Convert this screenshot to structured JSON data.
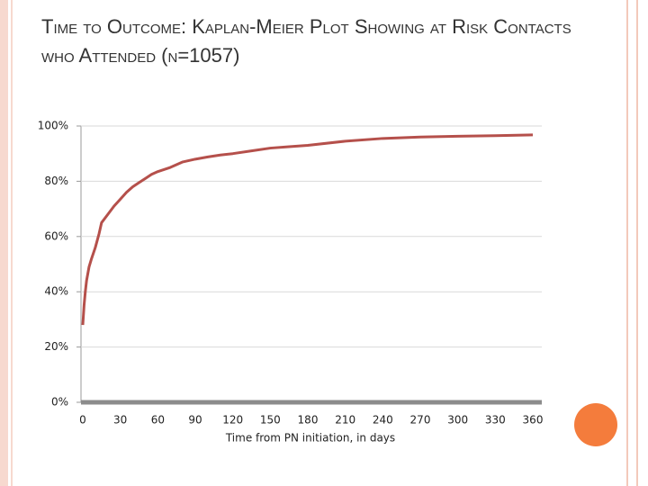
{
  "chart_data": {
    "type": "line",
    "title": "Time to Outcome: Kaplan-Meier Plot Showing at Risk Contacts who Attended (n=1057)",
    "x_label": "Time from PN initiation, in days",
    "x": [
      0,
      1,
      2,
      3,
      5,
      7,
      10,
      13,
      15,
      20,
      25,
      30,
      35,
      40,
      45,
      50,
      55,
      60,
      70,
      80,
      90,
      100,
      110,
      120,
      135,
      150,
      165,
      180,
      210,
      240,
      270,
      300,
      330,
      360
    ],
    "values": [
      28,
      35,
      40,
      44,
      49,
      52,
      56,
      61,
      65,
      68,
      71,
      73.5,
      76,
      78,
      79.5,
      81,
      82.5,
      83.5,
      85,
      87,
      88,
      88.8,
      89.5,
      90,
      91,
      92,
      92.5,
      93,
      94.5,
      95.5,
      96,
      96.3,
      96.5,
      96.8
    ],
    "color": "#b5504b",
    "xlim": [
      0,
      360
    ],
    "xticks": [
      0,
      30,
      60,
      90,
      120,
      150,
      180,
      210,
      240,
      270,
      300,
      330,
      360
    ],
    "ylim": [
      0,
      100
    ],
    "yticks": [
      {
        "value": 0,
        "label": "0%"
      },
      {
        "value": 20,
        "label": "20%"
      },
      {
        "value": 40,
        "label": "40%"
      },
      {
        "value": 60,
        "label": "60%"
      },
      {
        "value": 80,
        "label": "80%"
      },
      {
        "value": 100,
        "label": "100%"
      }
    ],
    "grid": true
  }
}
